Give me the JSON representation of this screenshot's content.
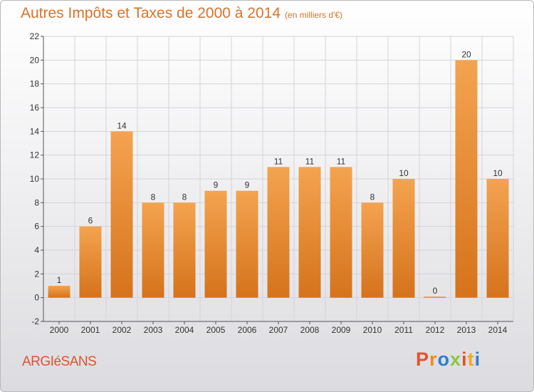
{
  "header": {
    "title": "Autres Impôts et Taxes de 2000 à 2014",
    "subtitle": "(en milliers d'€)"
  },
  "footer": {
    "town": "ARGIéSANS",
    "logo": "Proxiti"
  },
  "colors": {
    "bar_light": "#f4a350",
    "bar_dark": "#d5731b",
    "title": "#d9732a",
    "town": "#e0522e",
    "logo_letters": [
      "#e2532a",
      "#f08a1a",
      "#2f7fd0",
      "#8cc63f",
      "#e2532a",
      "#f6a623",
      "#2f7fd0"
    ]
  },
  "chart_data": {
    "type": "bar",
    "title": "Autres Impôts et Taxes de 2000 à 2014",
    "subtitle": "(en milliers d'€)",
    "categories": [
      "2000",
      "2001",
      "2002",
      "2003",
      "2004",
      "2005",
      "2006",
      "2007",
      "2008",
      "2009",
      "2010",
      "2011",
      "2012",
      "2013",
      "2014"
    ],
    "values": [
      1,
      6,
      14,
      8,
      8,
      9,
      9,
      11,
      11,
      11,
      8,
      10,
      0,
      20,
      10
    ],
    "ylim": [
      -2,
      22
    ],
    "yticks": [
      -2,
      0,
      2,
      4,
      6,
      8,
      10,
      12,
      14,
      16,
      18,
      20,
      22
    ],
    "grid": true,
    "legend": "none"
  }
}
